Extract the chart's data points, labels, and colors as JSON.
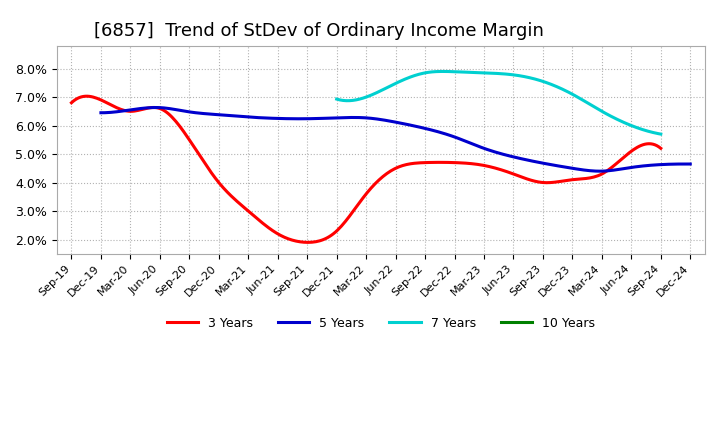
{
  "title": "[6857]  Trend of StDev of Ordinary Income Margin",
  "title_fontsize": 13,
  "ylim": [
    0.015,
    0.088
  ],
  "yticks": [
    0.02,
    0.03,
    0.04,
    0.05,
    0.06,
    0.07,
    0.08
  ],
  "background_color": "#ffffff",
  "plot_bg_color": "#ffffff",
  "grid_color": "#aaaaaa",
  "xtick_labels": [
    "Sep-19",
    "Dec-19",
    "Mar-20",
    "Jun-20",
    "Sep-20",
    "Dec-20",
    "Mar-21",
    "Jun-21",
    "Sep-21",
    "Dec-21",
    "Mar-22",
    "Jun-22",
    "Sep-22",
    "Dec-22",
    "Mar-23",
    "Jun-23",
    "Sep-23",
    "Dec-23",
    "Mar-24",
    "Jun-24",
    "Sep-24",
    "Dec-24"
  ],
  "series": {
    "3 Years": {
      "color": "#ff0000",
      "xi": [
        0,
        1,
        2,
        3,
        4,
        5,
        6,
        7,
        8,
        9,
        10,
        11,
        12,
        13,
        14,
        15,
        16,
        17,
        18,
        19,
        20
      ],
      "y": [
        0.068,
        0.069,
        0.065,
        0.066,
        0.055,
        0.04,
        0.03,
        0.022,
        0.019,
        0.023,
        0.036,
        0.045,
        0.047,
        0.047,
        0.046,
        0.043,
        0.04,
        0.041,
        0.043,
        0.051,
        0.052
      ]
    },
    "5 Years": {
      "color": "#0000cd",
      "xi": [
        1,
        2,
        3,
        4,
        5,
        6,
        7,
        8,
        9,
        10,
        11,
        12,
        13,
        14,
        15,
        16,
        17,
        18,
        19,
        20,
        21
      ],
      "y": [
        0.0645,
        0.0655,
        0.0663,
        0.0648,
        0.0638,
        0.063,
        0.0625,
        0.0624,
        0.0627,
        0.0627,
        0.0612,
        0.059,
        0.056,
        0.052,
        0.049,
        0.0468,
        0.045,
        0.044,
        0.0453,
        0.0463,
        0.0465
      ]
    },
    "7 Years": {
      "color": "#00d0d0",
      "xi": [
        9,
        10,
        11,
        12,
        13,
        14,
        15,
        16,
        17,
        18,
        19,
        20
      ],
      "y": [
        0.0693,
        0.07,
        0.0748,
        0.0785,
        0.0789,
        0.0785,
        0.0778,
        0.0755,
        0.071,
        0.065,
        0.06,
        0.057
      ]
    },
    "10 Years": {
      "color": "#008000",
      "xi": [],
      "y": []
    }
  },
  "legend_labels": [
    "3 Years",
    "5 Years",
    "7 Years",
    "10 Years"
  ],
  "legend_colors": [
    "#ff0000",
    "#0000cd",
    "#00d0d0",
    "#008000"
  ]
}
